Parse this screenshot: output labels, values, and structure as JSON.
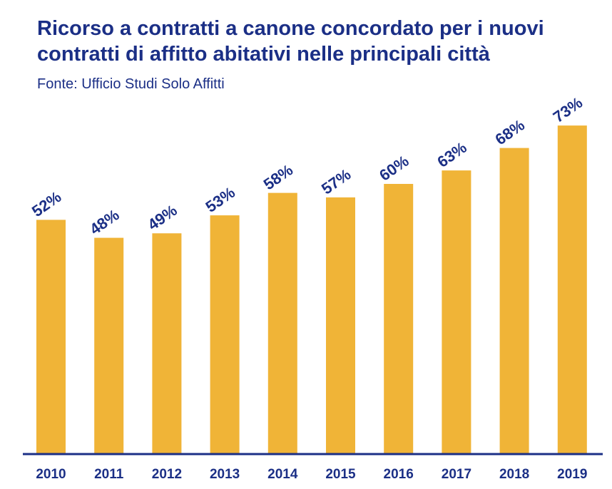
{
  "title_line1": "Ricorso a contratti a canone concordato per i nuovi",
  "title_line2": "contratti di affitto abitativi nelle principali città",
  "source": "Fonte: Ufficio Studi Solo Affitti",
  "colors": {
    "bar": "#f0b437",
    "text": "#1b2f86",
    "axis": "#1b2f86"
  },
  "chart_data": {
    "type": "bar",
    "categories": [
      "2010",
      "2011",
      "2012",
      "2013",
      "2014",
      "2015",
      "2016",
      "2017",
      "2018",
      "2019"
    ],
    "values": [
      52,
      48,
      49,
      53,
      58,
      57,
      60,
      63,
      68,
      73
    ],
    "value_labels": [
      "52%",
      "48%",
      "49%",
      "53%",
      "58%",
      "57%",
      "60%",
      "63%",
      "68%",
      "73%"
    ],
    "unit": "%",
    "ylim": [
      0,
      100
    ],
    "grid": false,
    "legend": "none"
  }
}
